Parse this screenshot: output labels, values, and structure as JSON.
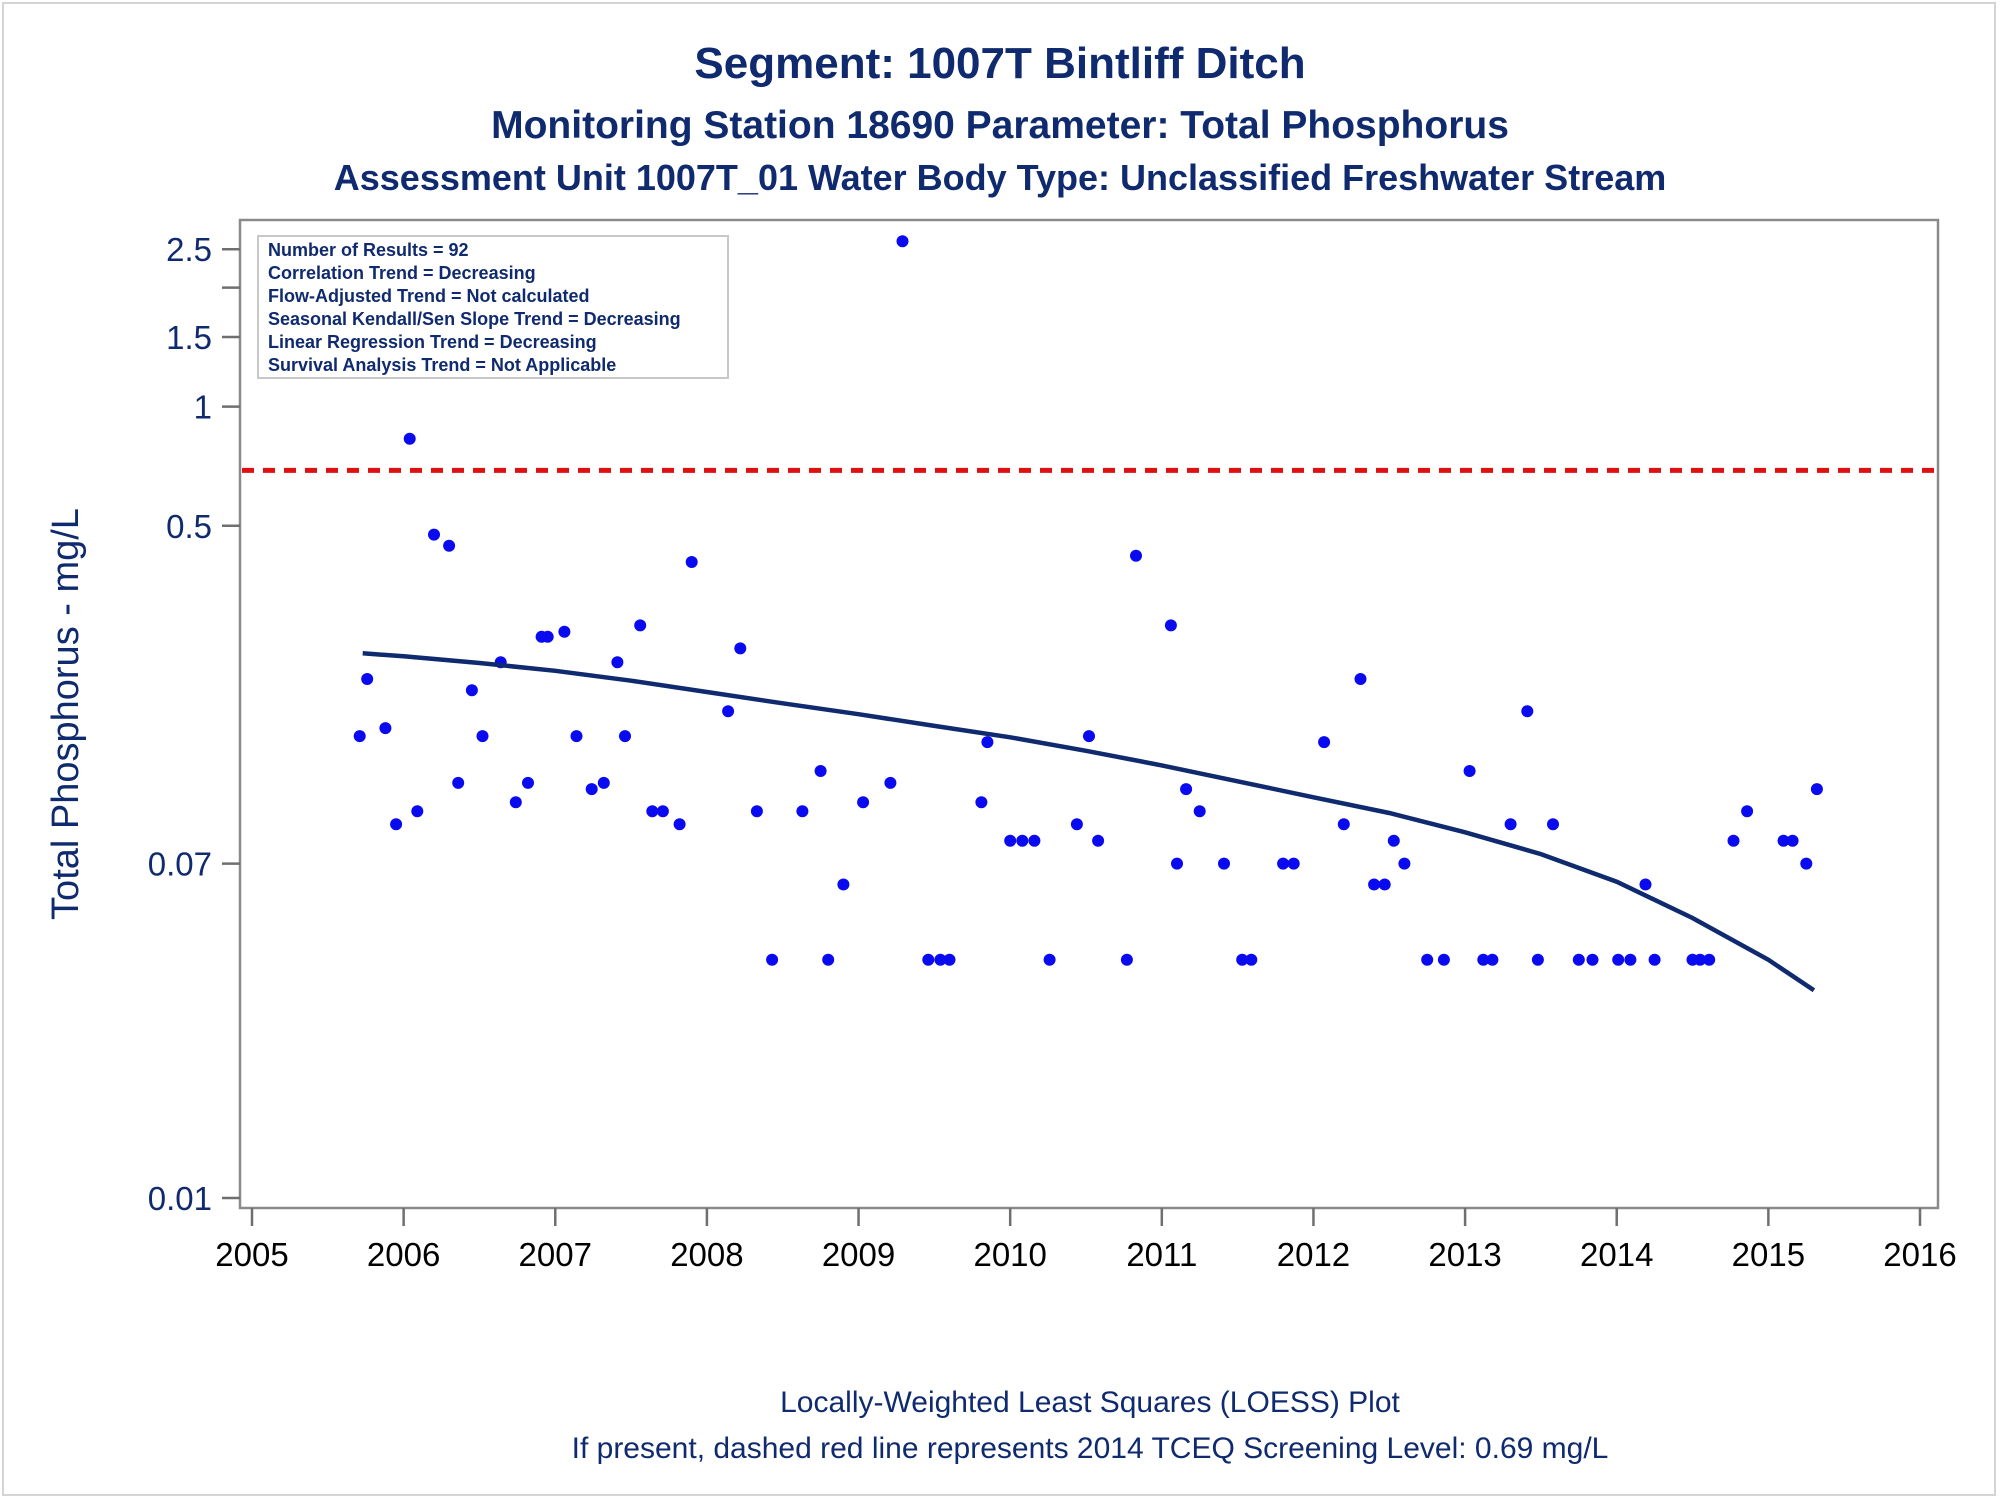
{
  "chart_data": {
    "type": "scatter",
    "title": "Segment: 1007T  Bintliff Ditch",
    "subtitle": "Monitoring Station 18690 Parameter: Total Phosphorus",
    "subtitle2": "Assessment Unit 1007T_01   Water Body Type: Unclassified Freshwater Stream",
    "ylabel": "Total Phosphorus - mg/L",
    "yscale": "log",
    "xlim": [
      2005,
      2016
    ],
    "ylim": [
      0.01,
      2.7
    ],
    "x_ticks": [
      "2005",
      "2006",
      "2007",
      "2008",
      "2009",
      "2010",
      "2011",
      "2012",
      "2013",
      "2014",
      "2015",
      "2016"
    ],
    "y_ticks": [
      {
        "label": "2.5",
        "value": 2.5
      },
      {
        "label": "",
        "value": 2.0
      },
      {
        "label": "1.5",
        "value": 1.5
      },
      {
        "label": "1",
        "value": 1.0
      },
      {
        "label": "0.5",
        "value": 0.5
      },
      {
        "label": "0.07",
        "value": 0.07
      },
      {
        "label": "0.01",
        "value": 0.01
      }
    ],
    "screening_level": {
      "value": 0.69,
      "color": "#dd1111",
      "style": "dashed"
    },
    "point_color": "#0a0af0",
    "line_color": "#0f2a6e",
    "points": [
      [
        2005.71,
        0.147
      ],
      [
        2005.76,
        0.205
      ],
      [
        2005.88,
        0.154
      ],
      [
        2005.95,
        0.088
      ],
      [
        2006.04,
        0.83
      ],
      [
        2006.09,
        0.095
      ],
      [
        2006.2,
        0.475
      ],
      [
        2006.3,
        0.445
      ],
      [
        2006.36,
        0.112
      ],
      [
        2006.45,
        0.192
      ],
      [
        2006.52,
        0.147
      ],
      [
        2006.64,
        0.226
      ],
      [
        2006.74,
        0.1
      ],
      [
        2006.82,
        0.112
      ],
      [
        2006.91,
        0.262
      ],
      [
        2006.95,
        0.262
      ],
      [
        2007.06,
        0.27
      ],
      [
        2007.14,
        0.147
      ],
      [
        2007.24,
        0.108
      ],
      [
        2007.32,
        0.112
      ],
      [
        2007.41,
        0.226
      ],
      [
        2007.46,
        0.147
      ],
      [
        2007.56,
        0.28
      ],
      [
        2007.64,
        0.095
      ],
      [
        2007.71,
        0.095
      ],
      [
        2007.82,
        0.088
      ],
      [
        2007.9,
        0.405
      ],
      [
        2008.14,
        0.17
      ],
      [
        2008.22,
        0.245
      ],
      [
        2008.33,
        0.095
      ],
      [
        2008.43,
        0.04
      ],
      [
        2008.63,
        0.095
      ],
      [
        2008.75,
        0.12
      ],
      [
        2008.8,
        0.04
      ],
      [
        2008.9,
        0.062
      ],
      [
        2009.03,
        0.1
      ],
      [
        2009.21,
        0.112
      ],
      [
        2009.29,
        2.62
      ],
      [
        2009.46,
        0.04
      ],
      [
        2009.54,
        0.04
      ],
      [
        2009.6,
        0.04
      ],
      [
        2009.81,
        0.1
      ],
      [
        2009.85,
        0.142
      ],
      [
        2010.0,
        0.08
      ],
      [
        2010.08,
        0.08
      ],
      [
        2010.16,
        0.08
      ],
      [
        2010.26,
        0.04
      ],
      [
        2010.44,
        0.088
      ],
      [
        2010.52,
        0.147
      ],
      [
        2010.58,
        0.08
      ],
      [
        2010.77,
        0.04
      ],
      [
        2010.83,
        0.42
      ],
      [
        2011.06,
        0.28
      ],
      [
        2011.1,
        0.07
      ],
      [
        2011.16,
        0.108
      ],
      [
        2011.25,
        0.095
      ],
      [
        2011.41,
        0.07
      ],
      [
        2011.53,
        0.04
      ],
      [
        2011.59,
        0.04
      ],
      [
        2011.8,
        0.07
      ],
      [
        2011.87,
        0.07
      ],
      [
        2012.07,
        0.142
      ],
      [
        2012.2,
        0.088
      ],
      [
        2012.31,
        0.205
      ],
      [
        2012.4,
        0.062
      ],
      [
        2012.47,
        0.062
      ],
      [
        2012.53,
        0.08
      ],
      [
        2012.6,
        0.07
      ],
      [
        2012.75,
        0.04
      ],
      [
        2012.86,
        0.04
      ],
      [
        2013.03,
        0.12
      ],
      [
        2013.12,
        0.04
      ],
      [
        2013.18,
        0.04
      ],
      [
        2013.3,
        0.088
      ],
      [
        2013.41,
        0.17
      ],
      [
        2013.48,
        0.04
      ],
      [
        2013.58,
        0.088
      ],
      [
        2013.75,
        0.04
      ],
      [
        2013.84,
        0.04
      ],
      [
        2014.01,
        0.04
      ],
      [
        2014.09,
        0.04
      ],
      [
        2014.19,
        0.062
      ],
      [
        2014.25,
        0.04
      ],
      [
        2014.5,
        0.04
      ],
      [
        2014.55,
        0.04
      ],
      [
        2014.61,
        0.04
      ],
      [
        2014.77,
        0.08
      ],
      [
        2014.86,
        0.095
      ],
      [
        2015.1,
        0.08
      ],
      [
        2015.16,
        0.08
      ],
      [
        2015.25,
        0.07
      ],
      [
        2015.32,
        0.108
      ]
    ],
    "loess": [
      [
        2005.73,
        0.238
      ],
      [
        2006.0,
        0.234
      ],
      [
        2006.5,
        0.225
      ],
      [
        2007.0,
        0.215
      ],
      [
        2007.5,
        0.203
      ],
      [
        2008.0,
        0.19
      ],
      [
        2008.5,
        0.178
      ],
      [
        2009.0,
        0.167
      ],
      [
        2009.5,
        0.156
      ],
      [
        2010.0,
        0.146
      ],
      [
        2010.5,
        0.135
      ],
      [
        2011.0,
        0.124
      ],
      [
        2011.5,
        0.113
      ],
      [
        2012.0,
        0.103
      ],
      [
        2012.5,
        0.094
      ],
      [
        2013.0,
        0.084
      ],
      [
        2013.5,
        0.074
      ],
      [
        2014.0,
        0.063
      ],
      [
        2014.5,
        0.051
      ],
      [
        2015.0,
        0.04
      ],
      [
        2015.3,
        0.0335
      ]
    ],
    "stats_box": [
      "Number of Results = 92",
      "Correlation Trend = Decreasing",
      "Flow-Adjusted Trend = Not calculated",
      "Seasonal Kendall/Sen Slope Trend = Decreasing",
      "Linear Regression Trend = Decreasing",
      "Survival Analysis Trend = Not Applicable"
    ],
    "footnote1": "Locally-Weighted Least Squares (LOESS) Plot",
    "footnote2": "If present, dashed red line represents 2014 TCEQ Screening Level: 0.69 mg/L"
  }
}
